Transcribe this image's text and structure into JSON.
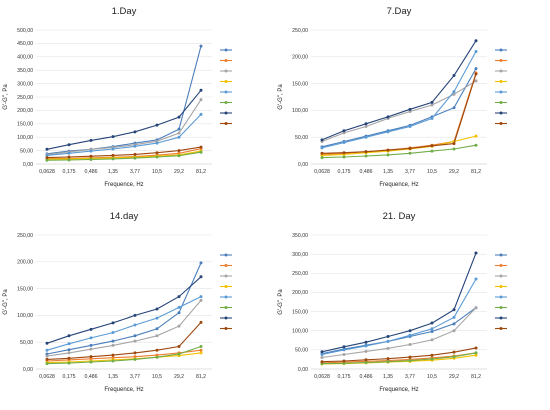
{
  "chart_data": [
    {
      "type": "line",
      "title": "1.Day",
      "xlabel": "Frequence, Hz",
      "ylabel": "G'-G'', Pa",
      "x": [
        "0,0628",
        "0,175",
        "0,486",
        "1,35",
        "3,77",
        "10,5",
        "29,2",
        "81,2"
      ],
      "ylim": [
        0,
        500
      ],
      "yticks": [
        "0,00",
        "50,00",
        "100,00",
        "150,00",
        "200,00",
        "250,00",
        "300,00",
        "350,00",
        "400,00",
        "450,00",
        "500,00"
      ],
      "grid": true,
      "legend_position": "right",
      "series": [
        {
          "color": "#4a7ebb",
          "values": [
            38,
            48,
            55,
            65,
            78,
            90,
            130,
            440
          ]
        },
        {
          "color": "#ed7d31",
          "values": [
            20,
            21,
            23,
            25,
            28,
            33,
            40,
            57
          ]
        },
        {
          "color": "#a5a5a5",
          "values": [
            35,
            45,
            55,
            62,
            72,
            85,
            115,
            240
          ]
        },
        {
          "color": "#f2c200",
          "values": [
            18,
            19,
            21,
            23,
            25,
            29,
            34,
            48
          ]
        },
        {
          "color": "#5b9bd5",
          "values": [
            32,
            40,
            48,
            56,
            66,
            78,
            100,
            185
          ]
        },
        {
          "color": "#70ad47",
          "values": [
            14,
            15,
            17,
            19,
            22,
            26,
            31,
            44
          ]
        },
        {
          "color": "#264478",
          "values": [
            55,
            72,
            88,
            102,
            120,
            145,
            175,
            275
          ]
        },
        {
          "color": "#9e480e",
          "values": [
            24,
            26,
            29,
            32,
            36,
            42,
            50,
            63
          ]
        }
      ]
    },
    {
      "type": "line",
      "title": "7.Day",
      "xlabel": "Frequence, Hz",
      "ylabel": "G'-G'', Pa",
      "x": [
        "0,0628",
        "0,175",
        "0,486",
        "1,35",
        "3,77",
        "10,5",
        "29,2",
        "81,2"
      ],
      "ylim": [
        0,
        250
      ],
      "yticks": [
        "0,00",
        "50,00",
        "100,00",
        "150,00",
        "200,00",
        "250,00"
      ],
      "grid": true,
      "legend_position": "right",
      "series": [
        {
          "color": "#4a7ebb",
          "values": [
            32,
            42,
            52,
            62,
            72,
            88,
            105,
            178
          ]
        },
        {
          "color": "#ed7d31",
          "values": [
            18,
            20,
            23,
            26,
            30,
            35,
            42,
            170
          ]
        },
        {
          "color": "#a5a5a5",
          "values": [
            42,
            58,
            70,
            85,
            98,
            110,
            130,
            155
          ]
        },
        {
          "color": "#f2c200",
          "values": [
            16,
            18,
            21,
            24,
            28,
            33,
            42,
            52
          ]
        },
        {
          "color": "#5b9bd5",
          "values": [
            30,
            40,
            50,
            60,
            70,
            85,
            135,
            210
          ]
        },
        {
          "color": "#70ad47",
          "values": [
            12,
            13,
            15,
            17,
            20,
            24,
            28,
            35
          ]
        },
        {
          "color": "#264478",
          "values": [
            45,
            62,
            75,
            88,
            102,
            115,
            165,
            230
          ]
        },
        {
          "color": "#9e480e",
          "values": [
            20,
            21,
            23,
            26,
            29,
            34,
            38,
            168
          ]
        }
      ]
    },
    {
      "type": "line",
      "title": "14.day",
      "xlabel": "Frequence, Hz",
      "ylabel": "G'-G'', Pa",
      "x": [
        "0,0628",
        "0,175",
        "0,486",
        "1,35",
        "3,77",
        "10,5",
        "29,2",
        "81,2"
      ],
      "ylim": [
        0,
        250
      ],
      "yticks": [
        "0,00",
        "50,00",
        "100,00",
        "150,00",
        "200,00",
        "250,00"
      ],
      "grid": true,
      "legend_position": "right",
      "series": [
        {
          "color": "#4a7ebb",
          "values": [
            28,
            36,
            44,
            52,
            62,
            75,
            105,
            198
          ]
        },
        {
          "color": "#ed7d31",
          "values": [
            15,
            17,
            19,
            21,
            23,
            26,
            30,
            35
          ]
        },
        {
          "color": "#a5a5a5",
          "values": [
            24,
            30,
            37,
            44,
            52,
            62,
            80,
            128
          ]
        },
        {
          "color": "#f2c200",
          "values": [
            12,
            13,
            15,
            17,
            19,
            22,
            25,
            30
          ]
        },
        {
          "color": "#5b9bd5",
          "values": [
            35,
            47,
            58,
            68,
            82,
            95,
            115,
            135
          ]
        },
        {
          "color": "#70ad47",
          "values": [
            10,
            11,
            13,
            15,
            18,
            22,
            28,
            42
          ]
        },
        {
          "color": "#264478",
          "values": [
            48,
            62,
            74,
            86,
            100,
            112,
            135,
            172
          ]
        },
        {
          "color": "#9e480e",
          "values": [
            18,
            20,
            23,
            26,
            30,
            35,
            42,
            87
          ]
        }
      ]
    },
    {
      "type": "line",
      "title": "21. Day",
      "xlabel": "Frequence, Hz",
      "ylabel": "G'-G'', Pa",
      "x": [
        "0,0628",
        "0,175",
        "0,486",
        "1,35",
        "3,77",
        "10,5",
        "29,2",
        "81,2"
      ],
      "ylim": [
        0,
        350
      ],
      "yticks": [
        "0,00",
        "50,00",
        "100,00",
        "150,00",
        "200,00",
        "250,00",
        "300,00",
        "350,00"
      ],
      "grid": true,
      "legend_position": "right",
      "series": [
        {
          "color": "#4a7ebb",
          "values": [
            40,
            52,
            62,
            72,
            85,
            98,
            118,
            160
          ]
        },
        {
          "color": "#ed7d31",
          "values": [
            16,
            18,
            20,
            22,
            25,
            29,
            34,
            42
          ]
        },
        {
          "color": "#a5a5a5",
          "values": [
            30,
            38,
            46,
            54,
            64,
            76,
            100,
            160
          ]
        },
        {
          "color": "#f2c200",
          "values": [
            13,
            14,
            16,
            18,
            20,
            23,
            28,
            36
          ]
        },
        {
          "color": "#5b9bd5",
          "values": [
            38,
            50,
            60,
            72,
            88,
            105,
            135,
            235
          ]
        },
        {
          "color": "#70ad47",
          "values": [
            14,
            15,
            17,
            19,
            22,
            26,
            32,
            42
          ]
        },
        {
          "color": "#264478",
          "values": [
            45,
            58,
            70,
            85,
            100,
            120,
            155,
            303
          ]
        },
        {
          "color": "#9e480e",
          "values": [
            19,
            21,
            24,
            27,
            31,
            36,
            44,
            55
          ]
        }
      ]
    }
  ]
}
